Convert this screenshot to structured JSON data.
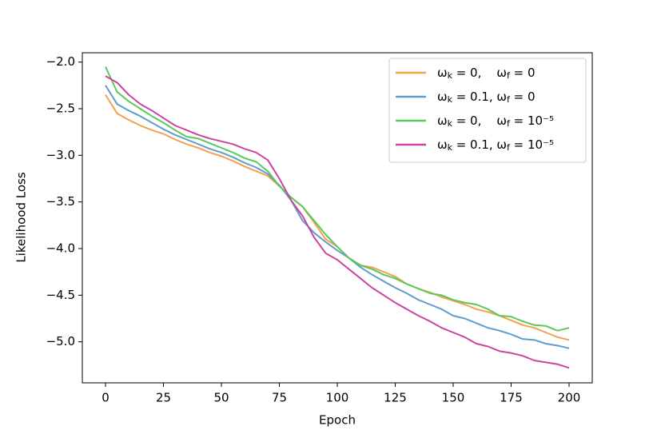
{
  "chart_data": {
    "type": "line",
    "xlabel": "Epoch",
    "ylabel": "Likelihood Loss",
    "x": [
      0,
      5,
      10,
      15,
      20,
      25,
      30,
      35,
      40,
      45,
      50,
      55,
      60,
      65,
      70,
      75,
      80,
      85,
      90,
      95,
      100,
      105,
      110,
      115,
      120,
      125,
      130,
      135,
      140,
      145,
      150,
      155,
      160,
      165,
      170,
      175,
      180,
      185,
      190,
      195,
      200
    ],
    "series": [
      {
        "name": "ωk = 0,    ωf = 0",
        "color": "#f5a04a",
        "values": [
          -2.35,
          -2.55,
          -2.62,
          -2.68,
          -2.73,
          -2.77,
          -2.83,
          -2.88,
          -2.92,
          -2.97,
          -3.01,
          -3.06,
          -3.12,
          -3.17,
          -3.22,
          -3.33,
          -3.45,
          -3.55,
          -3.72,
          -3.9,
          -3.98,
          -4.1,
          -4.18,
          -4.2,
          -4.25,
          -4.3,
          -4.38,
          -4.43,
          -4.47,
          -4.52,
          -4.56,
          -4.6,
          -4.65,
          -4.68,
          -4.72,
          -4.77,
          -4.82,
          -4.85,
          -4.9,
          -4.95,
          -4.98
        ]
      },
      {
        "name": "ωk = 0.1, ωf = 0",
        "color": "#5f9dcb",
        "values": [
          -2.25,
          -2.45,
          -2.52,
          -2.58,
          -2.65,
          -2.72,
          -2.78,
          -2.83,
          -2.88,
          -2.93,
          -2.97,
          -3.02,
          -3.08,
          -3.13,
          -3.2,
          -3.32,
          -3.48,
          -3.7,
          -3.83,
          -3.93,
          -4.02,
          -4.1,
          -4.2,
          -4.28,
          -4.35,
          -4.42,
          -4.48,
          -4.55,
          -4.6,
          -4.65,
          -4.72,
          -4.75,
          -4.8,
          -4.85,
          -4.88,
          -4.92,
          -4.97,
          -4.98,
          -5.02,
          -5.04,
          -5.07
        ]
      },
      {
        "name": "ωk = 0,    ωf = 10⁻⁵",
        "color": "#5ac95a",
        "values": [
          -2.05,
          -2.32,
          -2.42,
          -2.5,
          -2.58,
          -2.65,
          -2.73,
          -2.8,
          -2.82,
          -2.87,
          -2.92,
          -2.97,
          -3.03,
          -3.07,
          -3.17,
          -3.33,
          -3.45,
          -3.55,
          -3.7,
          -3.85,
          -3.98,
          -4.1,
          -4.18,
          -4.22,
          -4.28,
          -4.32,
          -4.38,
          -4.43,
          -4.48,
          -4.5,
          -4.55,
          -4.58,
          -4.6,
          -4.65,
          -4.72,
          -4.73,
          -4.78,
          -4.82,
          -4.83,
          -4.88,
          -4.85
        ]
      },
      {
        "name": "ωk = 0.1, ωf = 10⁻⁵",
        "color": "#cc44a0",
        "values": [
          -2.15,
          -2.22,
          -2.35,
          -2.45,
          -2.52,
          -2.6,
          -2.68,
          -2.73,
          -2.78,
          -2.82,
          -2.85,
          -2.88,
          -2.93,
          -2.97,
          -3.05,
          -3.25,
          -3.48,
          -3.65,
          -3.88,
          -4.05,
          -4.12,
          -4.22,
          -4.32,
          -4.42,
          -4.5,
          -4.58,
          -4.65,
          -4.72,
          -4.78,
          -4.85,
          -4.9,
          -4.95,
          -5.02,
          -5.05,
          -5.1,
          -5.12,
          -5.15,
          -5.2,
          -5.22,
          -5.24,
          -5.28
        ]
      }
    ],
    "xlim": [
      -10,
      210
    ],
    "xticks": [
      0,
      25,
      50,
      75,
      100,
      125,
      150,
      175,
      200
    ],
    "ylim": [
      -5.44,
      -1.9
    ],
    "yticks": [
      {
        "value": -5,
        "label": "−5.0"
      },
      {
        "value": -4.5,
        "label": "−4.5"
      },
      {
        "value": -4,
        "label": "−4.0"
      },
      {
        "value": -3.5,
        "label": "−3.5"
      },
      {
        "value": -3,
        "label": "−3.0"
      },
      {
        "value": -2.5,
        "label": "−2.5"
      },
      {
        "value": -2,
        "label": "−2.0"
      }
    ],
    "grid": false,
    "legend": "upper right"
  }
}
